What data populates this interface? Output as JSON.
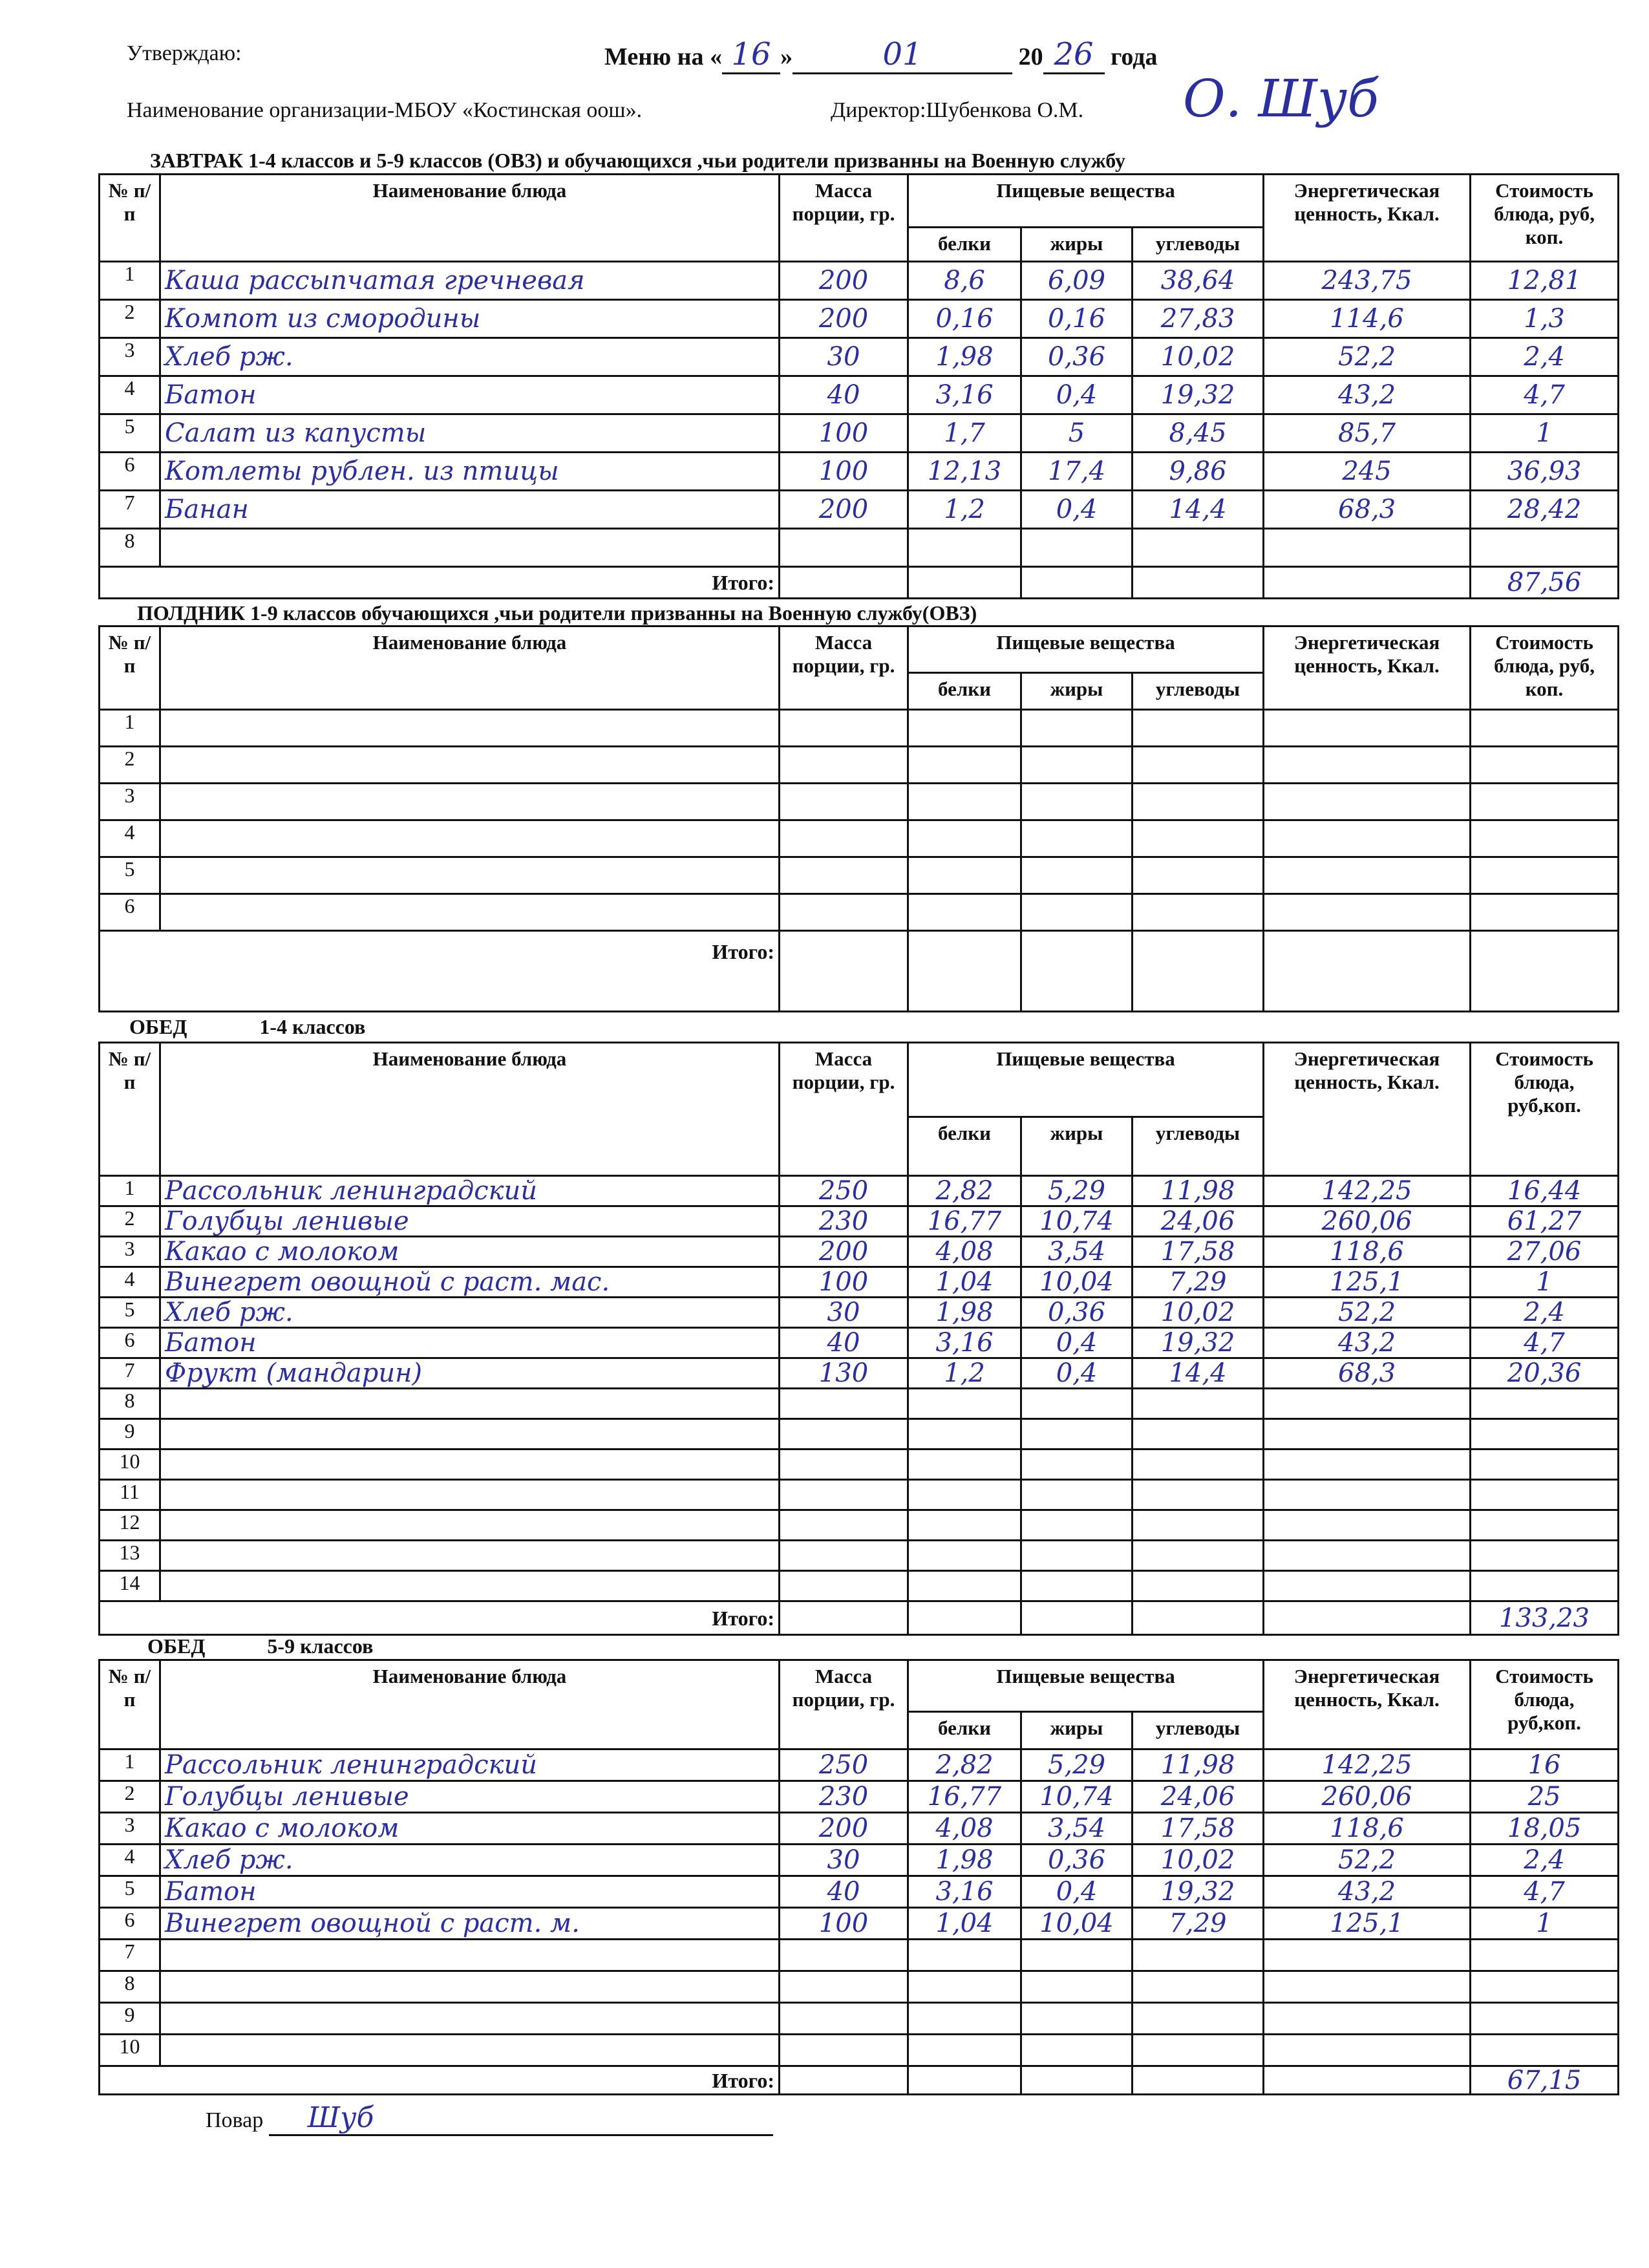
{
  "header": {
    "approve": "Утверждаю:",
    "menu_prefix": "Меню на",
    "day": "16",
    "month": "01",
    "year_prefix": "20",
    "year": "26",
    "year_suffix": "года",
    "organization": "Наименование организации-МБОУ «Костинская оош».",
    "director": "Директор:Шубенкова О.М.",
    "director_signature": "О. Шуб"
  },
  "sections": [
    {
      "title": "ЗАВТРАК    1-4 классов и 5-9 классов (ОВЗ) и обучающихся ,чьи родители призванны на Военную службу",
      "headers": [
        "№ п/п",
        "Наименование блюда",
        "Масса порции, гр.",
        "Пищевые вещества",
        "белки",
        "жиры",
        "углеводы",
        "Энергетическая ценность, Ккал.",
        "Стоимость блюда, руб, коп."
      ],
      "rows": [
        [
          "1",
          "Каша рассыпчатая гречневая",
          "200",
          "8,6",
          "6,09",
          "38,64",
          "243,75",
          "12,81"
        ],
        [
          "2",
          "Компот из смородины",
          "200",
          "0,16",
          "0,16",
          "27,83",
          "114,6",
          "1,3"
        ],
        [
          "3",
          "Хлеб рж.",
          "30",
          "1,98",
          "0,36",
          "10,02",
          "52,2",
          "2,4"
        ],
        [
          "4",
          "Батон",
          "40",
          "3,16",
          "0,4",
          "19,32",
          "43,2",
          "4,7"
        ],
        [
          "5",
          "Салат из капусты",
          "100",
          "1,7",
          "5",
          "8,45",
          "85,7",
          "1"
        ],
        [
          "6",
          "Котлеты рублен. из птицы",
          "100",
          "12,13",
          "17,4",
          "9,86",
          "245",
          "36,93"
        ],
        [
          "7",
          "Банан",
          "200",
          "1,2",
          "0,4",
          "14,4",
          "68,3",
          "28,42"
        ],
        [
          "8",
          "",
          "",
          "",
          "",
          "",
          "",
          ""
        ]
      ],
      "itogo_label": "Итого:",
      "itogo_value": "87,56"
    },
    {
      "title": "ПОЛДНИК  1-9 классов    обучающихся ,чьи родители призванны на Военную службу(ОВЗ)",
      "headers": [
        "№ п/п",
        "Наименование блюда",
        "Масса порции, гр.",
        "Пищевые вещества",
        "белки",
        "жиры",
        "углеводы",
        "Энергетическая ценность, Ккал.",
        "Стоимость блюда, руб, коп."
      ],
      "rows": [
        [
          "1",
          "",
          "",
          "",
          "",
          "",
          "",
          ""
        ],
        [
          "2",
          "",
          "",
          "",
          "",
          "",
          "",
          ""
        ],
        [
          "3",
          "",
          "",
          "",
          "",
          "",
          "",
          ""
        ],
        [
          "4",
          "",
          "",
          "",
          "",
          "",
          "",
          ""
        ],
        [
          "5",
          "",
          "",
          "",
          "",
          "",
          "",
          ""
        ],
        [
          "6",
          "",
          "",
          "",
          "",
          "",
          "",
          ""
        ]
      ],
      "itogo_label": "Итого:",
      "itogo_value": ""
    },
    {
      "title": "ОБЕД              1-4 классов",
      "headers": [
        "№ п/п",
        "Наименование блюда",
        "Масса порции, гр.",
        "Пищевые вещества",
        "белки",
        "жиры",
        "углеводы",
        "Энергетическая ценность, Ккал.",
        "Стоимость блюда, руб,коп."
      ],
      "rows": [
        [
          "1",
          "Рассольник ленинградский",
          "250",
          "2,82",
          "5,29",
          "11,98",
          "142,25",
          "16,44"
        ],
        [
          "2",
          "Голубцы ленивые",
          "230",
          "16,77",
          "10,74",
          "24,06",
          "260,06",
          "61,27"
        ],
        [
          "3",
          "Какао с молоком",
          "200",
          "4,08",
          "3,54",
          "17,58",
          "118,6",
          "27,06"
        ],
        [
          "4",
          "Винегрет овощной с раст. мас.",
          "100",
          "1,04",
          "10,04",
          "7,29",
          "125,1",
          "1"
        ],
        [
          "5",
          "Хлеб рж.",
          "30",
          "1,98",
          "0,36",
          "10,02",
          "52,2",
          "2,4"
        ],
        [
          "6",
          "Батон",
          "40",
          "3,16",
          "0,4",
          "19,32",
          "43,2",
          "4,7"
        ],
        [
          "7",
          "Фрукт (мандарин)",
          "130",
          "1,2",
          "0,4",
          "14,4",
          "68,3",
          "20,36"
        ],
        [
          "8",
          "",
          "",
          "",
          "",
          "",
          "",
          ""
        ],
        [
          "9",
          "",
          "",
          "",
          "",
          "",
          "",
          ""
        ],
        [
          "10",
          "",
          "",
          "",
          "",
          "",
          "",
          ""
        ],
        [
          "11",
          "",
          "",
          "",
          "",
          "",
          "",
          ""
        ],
        [
          "12",
          "",
          "",
          "",
          "",
          "",
          "",
          ""
        ],
        [
          "13",
          "",
          "",
          "",
          "",
          "",
          "",
          ""
        ],
        [
          "14",
          "",
          "",
          "",
          "",
          "",
          "",
          ""
        ]
      ],
      "itogo_label": "Итого:",
      "itogo_value": "133,23"
    },
    {
      "title": "ОБЕД            5-9 классов",
      "headers": [
        "№ п/п",
        "Наименование блюда",
        "Масса порции, гр.",
        "Пищевые вещества",
        "белки",
        "жиры",
        "углеводы",
        "Энергетическая ценность, Ккал.",
        "Стоимость блюда, руб,коп."
      ],
      "rows": [
        [
          "1",
          "Рассольник ленинградский",
          "250",
          "2,82",
          "5,29",
          "11,98",
          "142,25",
          "16"
        ],
        [
          "2",
          "Голубцы ленивые",
          "230",
          "16,77",
          "10,74",
          "24,06",
          "260,06",
          "25"
        ],
        [
          "3",
          "Какао с молоком",
          "200",
          "4,08",
          "3,54",
          "17,58",
          "118,6",
          "18,05"
        ],
        [
          "4",
          "Хлеб рж.",
          "30",
          "1,98",
          "0,36",
          "10,02",
          "52,2",
          "2,4"
        ],
        [
          "5",
          "Батон",
          "40",
          "3,16",
          "0,4",
          "19,32",
          "43,2",
          "4,7"
        ],
        [
          "6",
          "Винегрет овощной с раст. м.",
          "100",
          "1,04",
          "10,04",
          "7,29",
          "125,1",
          "1"
        ],
        [
          "7",
          "",
          "",
          "",
          "",
          "",
          "",
          ""
        ],
        [
          "8",
          "",
          "",
          "",
          "",
          "",
          "",
          ""
        ],
        [
          "9",
          "",
          "",
          "",
          "",
          "",
          "",
          ""
        ],
        [
          "10",
          "",
          "",
          "",
          "",
          "",
          "",
          ""
        ]
      ],
      "itogo_label": "Итого:",
      "itogo_value": "67,15"
    }
  ],
  "footer": {
    "cook_label": "Повар",
    "cook_signature": "Шуб"
  },
  "colors": {
    "ink": "#2b2f9e",
    "print": "#111111"
  }
}
